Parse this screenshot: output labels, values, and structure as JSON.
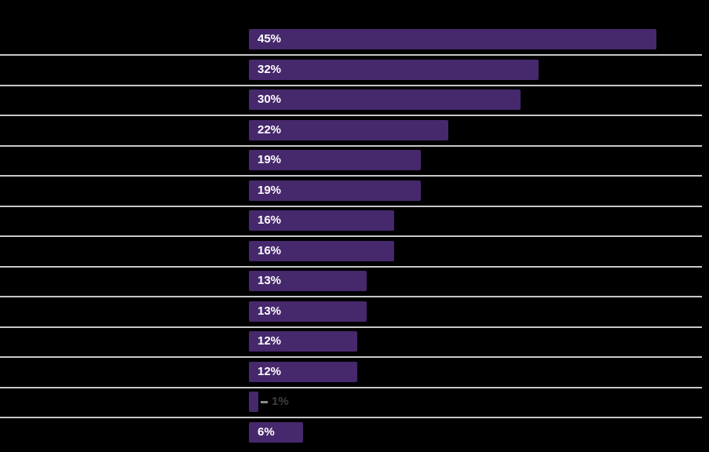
{
  "chart_data": {
    "type": "bar",
    "orientation": "horizontal",
    "title": "",
    "xlabel": "",
    "ylabel": "",
    "xlim": [
      0,
      50
    ],
    "grid": true,
    "legend": false,
    "values": [
      45,
      32,
      30,
      22,
      19,
      19,
      16,
      16,
      13,
      13,
      12,
      12,
      1,
      6
    ],
    "value_labels": [
      "45%",
      "32%",
      "30%",
      "22%",
      "19%",
      "19%",
      "16%",
      "16%",
      "13%",
      "13%",
      "12%",
      "12%",
      "1%",
      "6%"
    ]
  },
  "colors": {
    "background": "#000000",
    "bar_fill": "#46286c",
    "gridline": "#c8c8c8",
    "label_inside": "#ffffff",
    "label_outside": "#3e3e3e",
    "leader_line": "#8c8c8c"
  }
}
